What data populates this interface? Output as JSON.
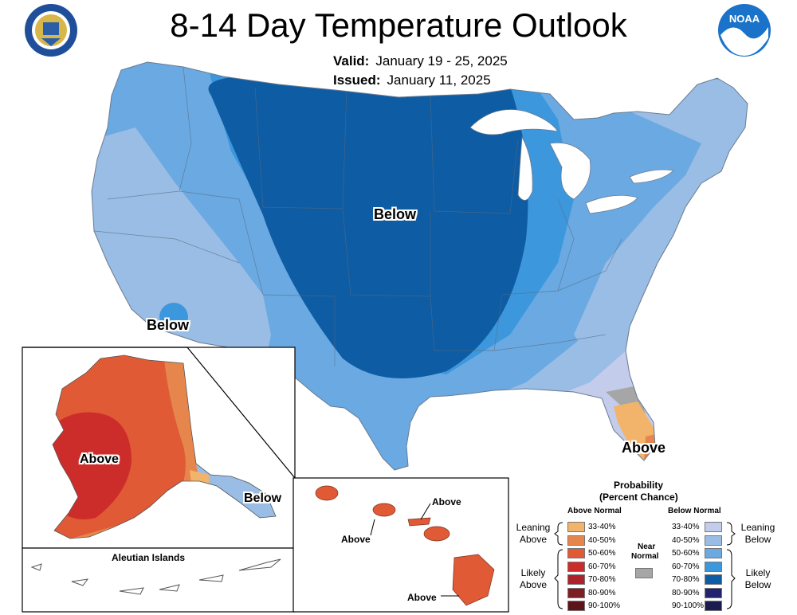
{
  "title": "8-14 Day Temperature Outlook",
  "valid_label": "Valid:",
  "valid_range": "January 19 - 25, 2025",
  "issued_label": "Issued:",
  "issued_date": "January 11, 2025",
  "logos": {
    "left": "Department of Commerce seal",
    "right": "NOAA logo",
    "noaa_text": "NOAA"
  },
  "labels": {
    "conus_below_center": "Below",
    "conus_below_sw": "Below",
    "florida": "Above",
    "alaska_above": "Above",
    "alaska_below": "Below",
    "aleutian_title": "Aleutian Islands",
    "hawaii_above_1": "Above",
    "hawaii_above_2": "Above",
    "hawaii_above_3": "Above"
  },
  "legend": {
    "title_1": "Probability",
    "title_2": "(Percent Chance)",
    "above_header": "Above Normal",
    "below_header": "Below Normal",
    "near_header_1": "Near",
    "near_header_2": "Normal",
    "leaning_above_1": "Leaning",
    "leaning_above_2": "Above",
    "likely_above_1": "Likely",
    "likely_above_2": "Above",
    "leaning_below_1": "Leaning",
    "leaning_below_2": "Below",
    "likely_below_1": "Likely",
    "likely_below_2": "Below",
    "above": [
      {
        "range": "33-40%",
        "color": "#f1b46a"
      },
      {
        "range": "40-50%",
        "color": "#e6864d"
      },
      {
        "range": "50-60%",
        "color": "#df5a35"
      },
      {
        "range": "60-70%",
        "color": "#cd2d2a"
      },
      {
        "range": "70-80%",
        "color": "#b02229"
      },
      {
        "range": "80-90%",
        "color": "#7d1e24"
      },
      {
        "range": "90-100%",
        "color": "#5c1418"
      }
    ],
    "below": [
      {
        "range": "33-40%",
        "color": "#c3cceb"
      },
      {
        "range": "40-50%",
        "color": "#99bde5"
      },
      {
        "range": "50-60%",
        "color": "#6aa9e1"
      },
      {
        "range": "60-70%",
        "color": "#3c97dc"
      },
      {
        "range": "70-80%",
        "color": "#0e5ca3"
      },
      {
        "range": "80-90%",
        "color": "#23226f"
      },
      {
        "range": "90-100%",
        "color": "#1b1b50"
      }
    ],
    "near_color": "#a6a6a6"
  }
}
